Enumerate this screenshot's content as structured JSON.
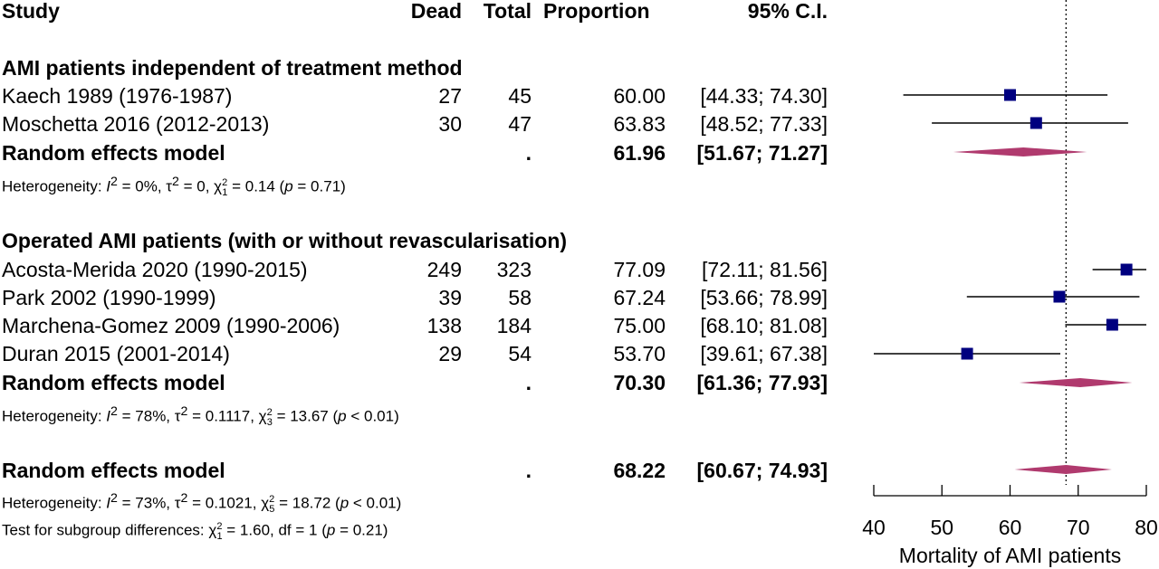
{
  "headers": {
    "study": "Study",
    "dead": "Dead",
    "total": "Total",
    "proportion": "Proportion",
    "ci": "95% C.I."
  },
  "groups": [
    {
      "title": "AMI patients independent of treatment method",
      "studies": [
        {
          "study": "Kaech 1989 (1976-1987)",
          "dead": "27",
          "total": "45",
          "proportion": "60.00",
          "ci": "[44.33; 74.30]",
          "est": 60.0,
          "lo": 44.33,
          "hi": 74.3,
          "weight": 1
        },
        {
          "study": "Moschetta 2016 (2012-2013)",
          "dead": "30",
          "total": "47",
          "proportion": "63.83",
          "ci": "[48.52; 77.33]",
          "est": 63.83,
          "lo": 48.52,
          "hi": 77.33,
          "weight": 1
        }
      ],
      "model": {
        "label": "Random effects model",
        "dot": ".",
        "proportion": "61.96",
        "ci": "[51.67; 71.27]",
        "est": 61.96,
        "lo": 51.67,
        "hi": 71.27
      },
      "heterogeneity": {
        "prefix": "Heterogeneity: ",
        "i2_sym": "I",
        "i2_val": " = 0%, ",
        "tau_sym": "τ",
        "tau_val": " = 0, ",
        "chi_sym": "χ",
        "chi_df": "1",
        "chi_val": " = 0.14 (",
        "p_sym": "p",
        "p_val": " = 0.71)"
      }
    },
    {
      "title": "Operated AMI patients (with or without revascularisation)",
      "studies": [
        {
          "study": "Acosta-Merida 2020 (1990-2015)",
          "dead": "249",
          "total": "323",
          "proportion": "77.09",
          "ci": "[72.11; 81.56]",
          "est": 77.09,
          "lo": 72.11,
          "hi": 81.56,
          "weight": 1
        },
        {
          "study": "Park 2002 (1990-1999)",
          "dead": "39",
          "total": "58",
          "proportion": "67.24",
          "ci": "[53.66; 78.99]",
          "est": 67.24,
          "lo": 53.66,
          "hi": 78.99,
          "weight": 1
        },
        {
          "study": "Marchena-Gomez 2009 (1990-2006)",
          "dead": "138",
          "total": "184",
          "proportion": "75.00",
          "ci": "[68.10; 81.08]",
          "est": 75.0,
          "lo": 68.1,
          "hi": 81.08,
          "weight": 1
        },
        {
          "study": "Duran 2015 (2001-2014)",
          "dead": "29",
          "total": "54",
          "proportion": "53.70",
          "ci": "[39.61; 67.38]",
          "est": 53.7,
          "lo": 39.61,
          "hi": 67.38,
          "weight": 1
        }
      ],
      "model": {
        "label": "Random effects model",
        "dot": ".",
        "proportion": "70.30",
        "ci": "[61.36; 77.93]",
        "est": 70.3,
        "lo": 61.36,
        "hi": 77.93
      },
      "heterogeneity": {
        "prefix": "Heterogeneity: ",
        "i2_sym": "I",
        "i2_val": " = 78%, ",
        "tau_sym": "τ",
        "tau_val": " = 0.1117, ",
        "chi_sym": "χ",
        "chi_df": "3",
        "chi_val": " = 13.67 (",
        "p_sym": "p",
        "p_val": " < 0.01)"
      }
    }
  ],
  "overall": {
    "label": "Random effects model",
    "dot": ".",
    "proportion": "68.22",
    "ci": "[60.67; 74.93]",
    "est": 68.22,
    "lo": 60.67,
    "hi": 74.93,
    "heterogeneity": {
      "prefix": "Heterogeneity: ",
      "i2_sym": "I",
      "i2_val": " = 73%, ",
      "tau_sym": "τ",
      "tau_val": " = 0.1021, ",
      "chi_sym": "χ",
      "chi_df": "5",
      "chi_val": " = 18.72 (",
      "p_sym": "p",
      "p_val": " < 0.01)"
    },
    "subgroup_test": {
      "prefix": "Test for subgroup differences: ",
      "chi_sym": "χ",
      "chi_df": "1",
      "chi_val": " = 1.60, df = 1 (",
      "p_sym": "p",
      "p_val": " = 0.21)"
    }
  },
  "chart_data": {
    "type": "forest",
    "xlabel": "Mortality of AMI patients",
    "xlim": [
      40,
      80
    ],
    "xticks": [
      40,
      50,
      60,
      70,
      80
    ],
    "reference_line": 68.22,
    "colors": {
      "square": "#00007f",
      "diamond": "#b03a6e",
      "line": "#000000"
    }
  }
}
